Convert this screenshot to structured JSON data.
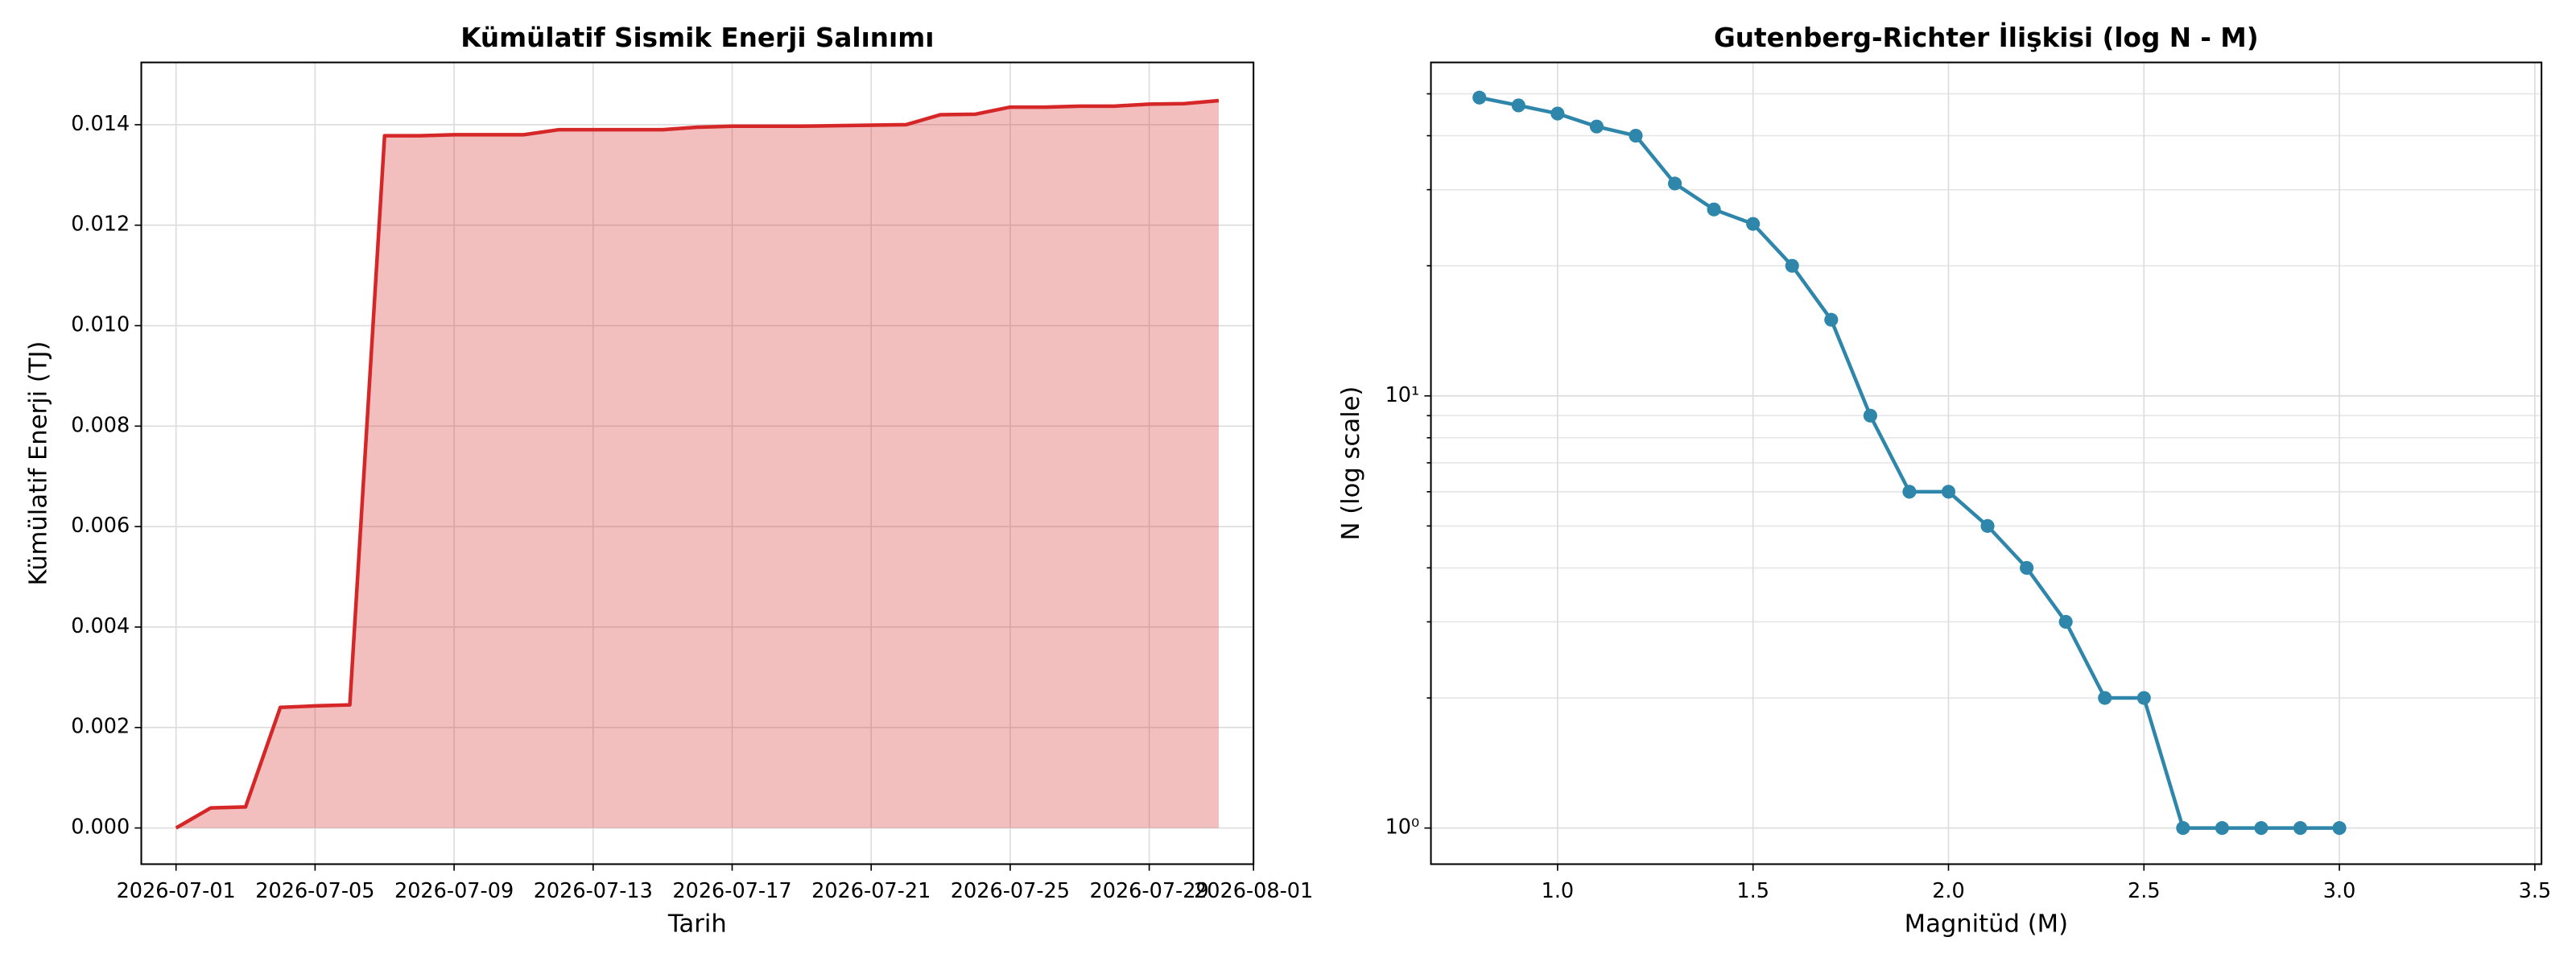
{
  "chart_data": [
    {
      "type": "line",
      "fill": true,
      "title": "Kümülatif Sismik Enerji Salınımı",
      "x_label": "Tarih",
      "y_label": "Kümülatif Enerji (TJ)",
      "color": "#d62728",
      "grid": true,
      "x": [
        "2026-07-01",
        "2026-07-02",
        "2026-07-03",
        "2026-07-04",
        "2026-07-05",
        "2026-07-06",
        "2026-07-07",
        "2026-07-08",
        "2026-07-09",
        "2026-07-10",
        "2026-07-11",
        "2026-07-12",
        "2026-07-13",
        "2026-07-14",
        "2026-07-15",
        "2026-07-16",
        "2026-07-17",
        "2026-07-18",
        "2026-07-19",
        "2026-07-20",
        "2026-07-21",
        "2026-07-22",
        "2026-07-23",
        "2026-07-24",
        "2026-07-25",
        "2026-07-26",
        "2026-07-27",
        "2026-07-28",
        "2026-07-29",
        "2026-07-30",
        "2026-07-31"
      ],
      "values": [
        0,
        0.0004,
        0.00042,
        0.0024,
        0.00243,
        0.00245,
        0.01378,
        0.01378,
        0.0138,
        0.0138,
        0.0138,
        0.0139,
        0.0139,
        0.0139,
        0.0139,
        0.01395,
        0.01397,
        0.01397,
        0.01397,
        0.01398,
        0.01399,
        0.014,
        0.0142,
        0.01421,
        0.01435,
        0.01435,
        0.01437,
        0.01437,
        0.01441,
        0.01442,
        0.01448
      ],
      "xlim": [
        "2026-06-30",
        "2026-08-01"
      ],
      "xticks": [
        "2026-07-01",
        "2026-07-05",
        "2026-07-09",
        "2026-07-13",
        "2026-07-17",
        "2026-07-21",
        "2026-07-25",
        "2026-07-29",
        "2026-08-01"
      ],
      "ylim": [
        -0.00072,
        0.01524
      ],
      "yticks": [
        {
          "value": 0,
          "label": "0.000"
        },
        {
          "value": 0.002,
          "label": "0.002"
        },
        {
          "value": 0.004,
          "label": "0.004"
        },
        {
          "value": 0.006,
          "label": "0.006"
        },
        {
          "value": 0.008,
          "label": "0.008"
        },
        {
          "value": 0.01,
          "label": "0.010"
        },
        {
          "value": 0.012,
          "label": "0.012"
        },
        {
          "value": 0.014,
          "label": "0.014"
        }
      ]
    },
    {
      "type": "line",
      "markers": true,
      "title": "Gutenberg-Richter İlişkisi (log N - M)",
      "x_label": "Magnitüd (M)",
      "y_label": "N (log scale)",
      "color": "#2e86ab",
      "grid": true,
      "yscale": "log",
      "x": [
        0.8,
        0.9,
        1.0,
        1.1,
        1.2,
        1.3,
        1.4,
        1.5,
        1.6,
        1.7,
        1.8,
        1.9,
        2.0,
        2.1,
        2.2,
        2.3,
        2.4,
        2.5,
        2.6,
        2.7,
        2.8,
        2.9,
        3.0
      ],
      "values": [
        49,
        47,
        45,
        42,
        40,
        31,
        27,
        25,
        20,
        15,
        9,
        6,
        6,
        5,
        4,
        3,
        2,
        2,
        1,
        1,
        1,
        1,
        1
      ],
      "xlim": [
        0.676,
        3.517
      ],
      "xticks": [
        {
          "value": 1,
          "label": "1.0"
        },
        {
          "value": 1.5,
          "label": "1.5"
        },
        {
          "value": 2,
          "label": "2.0"
        },
        {
          "value": 2.5,
          "label": "2.5"
        },
        {
          "value": 3,
          "label": "3.0"
        },
        {
          "value": 3.5,
          "label": "3.5"
        }
      ],
      "ylim": [
        0.825,
        59.1
      ],
      "yticks": [
        {
          "value": 1,
          "label": "10⁰"
        },
        {
          "value": 10,
          "label": "10¹"
        }
      ],
      "yticks_minor": [
        2,
        3,
        4,
        5,
        6,
        7,
        8,
        9,
        20,
        30,
        40,
        50
      ]
    }
  ]
}
